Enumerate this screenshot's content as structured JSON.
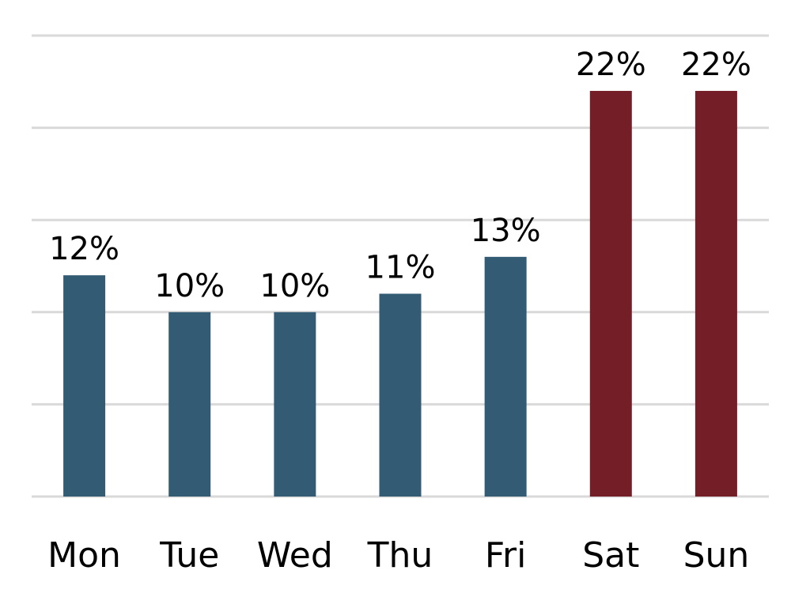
{
  "chart_data": {
    "type": "bar",
    "categories": [
      "Mon",
      "Tue",
      "Wed",
      "Thu",
      "Fri",
      "Sat",
      "Sun"
    ],
    "values": [
      12,
      10,
      10,
      11,
      13,
      22,
      22
    ],
    "value_labels": [
      "12%",
      "10%",
      "10%",
      "11%",
      "13%",
      "22%",
      "22%"
    ],
    "unit": "%",
    "ylim": [
      0,
      25
    ],
    "ytick_step": 5,
    "grid": true,
    "legend": "none",
    "colors": {
      "weekday": "#335c74",
      "weekend": "#741f28",
      "grid": "#d9d9d9"
    },
    "bar_color_groups": [
      "weekday",
      "weekday",
      "weekday",
      "weekday",
      "weekday",
      "weekend",
      "weekend"
    ]
  }
}
